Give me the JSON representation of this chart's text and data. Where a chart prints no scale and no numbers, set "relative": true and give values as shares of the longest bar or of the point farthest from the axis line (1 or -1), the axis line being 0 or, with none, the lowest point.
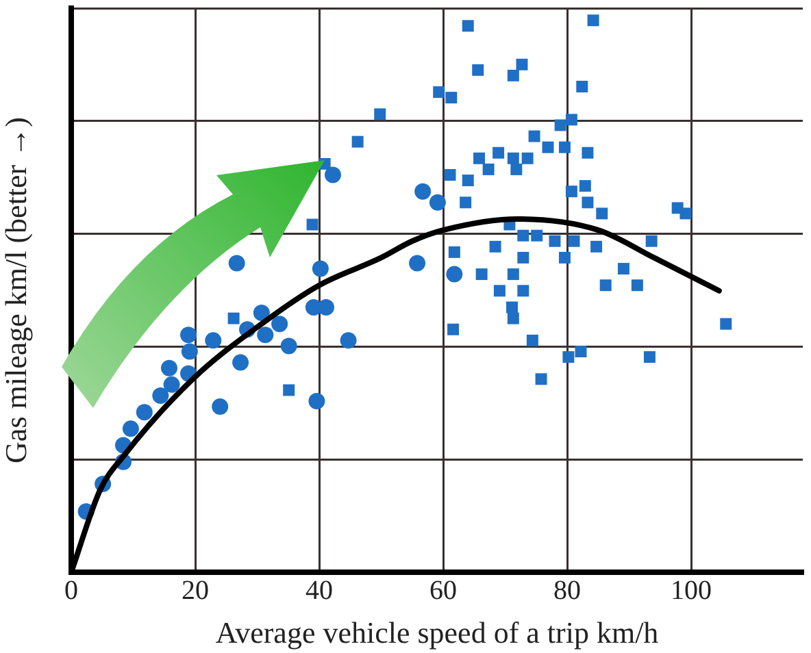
{
  "chart_data": {
    "type": "scatter",
    "xlabel": "Average vehicle speed of a trip km/h",
    "ylabel": "Gas mileage km/l (better →)",
    "relative": true,
    "xlim": [
      0,
      118
    ],
    "xticks": [
      0,
      20,
      40,
      60,
      80,
      100
    ],
    "tick_labels": "x",
    "grid": true,
    "legend": false,
    "series": [
      {
        "type": "scatter",
        "marker": "circle",
        "color": "#1f6fc5",
        "x": [
          2.4,
          5.1,
          8.4,
          8.4,
          9.6,
          11.8,
          14.4,
          16.2,
          15.8,
          18.9,
          19.1,
          18.9,
          22.9,
          24,
          27.3,
          30.7,
          31.3,
          33.6,
          35.1,
          39.6,
          39.1,
          41.1,
          44.7,
          28.4,
          26.7,
          40.2,
          42.2,
          55.8,
          56.7,
          59.1,
          61.8
        ],
        "values": [
          0.11,
          0.16,
          0.2,
          0.23,
          0.26,
          0.29,
          0.32,
          0.34,
          0.37,
          0.36,
          0.4,
          0.43,
          0.42,
          0.3,
          0.38,
          0.47,
          0.43,
          0.45,
          0.41,
          0.31,
          0.48,
          0.48,
          0.42,
          0.44,
          0.56,
          0.55,
          0.72,
          0.56,
          0.69,
          0.67,
          0.54
        ]
      },
      {
        "type": "scatter",
        "marker": "square",
        "color": "#1f6fc5",
        "x": [
          26.2,
          35.1,
          38.9,
          40.9,
          46.2,
          49.8,
          64,
          84.2,
          65.6,
          72.7,
          71.3,
          82.4,
          59.3,
          61.3,
          74.7,
          76.9,
          78.9,
          80.7,
          79.6,
          83.3,
          65.8,
          68.9,
          71.3,
          73.6,
          67.3,
          71.8,
          61.1,
          64,
          63.6,
          80.7,
          82.9,
          83.3,
          85.6,
          97.8,
          99.1,
          70.7,
          72.9,
          75.1,
          78,
          81.1,
          84.7,
          93.6,
          61.8,
          68.4,
          79.6,
          72.9,
          66.2,
          71.3,
          89.1,
          91.3,
          86.2,
          69.1,
          72.9,
          61.6,
          71.3,
          71.1,
          74.4,
          75.8,
          80.2,
          82.2,
          93.3,
          105.6
        ],
        "values": [
          0.46,
          0.33,
          0.63,
          0.74,
          0.78,
          0.83,
          0.99,
          1,
          0.91,
          0.92,
          0.9,
          0.88,
          0.87,
          0.86,
          0.79,
          0.77,
          0.81,
          0.82,
          0.77,
          0.76,
          0.75,
          0.76,
          0.75,
          0.75,
          0.73,
          0.73,
          0.72,
          0.71,
          0.67,
          0.69,
          0.7,
          0.67,
          0.65,
          0.66,
          0.65,
          0.63,
          0.61,
          0.61,
          0.6,
          0.6,
          0.59,
          0.6,
          0.58,
          0.59,
          0.57,
          0.57,
          0.54,
          0.54,
          0.55,
          0.52,
          0.52,
          0.51,
          0.51,
          0.44,
          0.46,
          0.48,
          0.42,
          0.35,
          0.39,
          0.4,
          0.39,
          0.45
        ]
      },
      {
        "type": "line",
        "marker": "none",
        "line_style": "solid",
        "color": "#000000",
        "x": [
          0,
          4.7,
          8.4,
          19.6,
          30.7,
          40,
          50,
          55,
          60,
          72,
          85,
          94,
          104.5
        ],
        "values": [
          0,
          0.15,
          0.21,
          0.35,
          0.45,
          0.52,
          0.57,
          0.6,
          0.62,
          0.64,
          0.62,
          0.57,
          0.51
        ]
      }
    ]
  }
}
